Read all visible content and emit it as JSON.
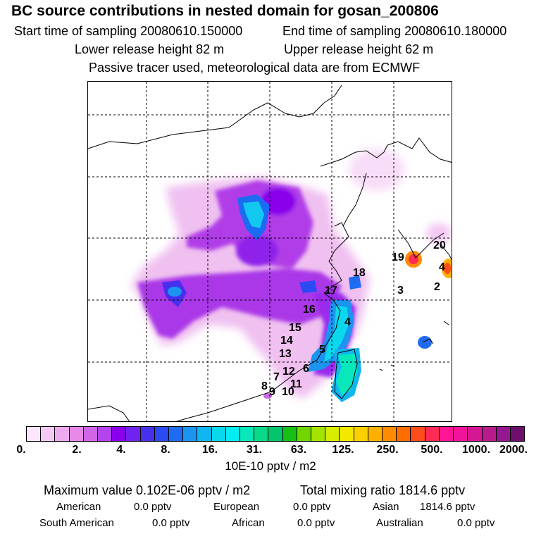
{
  "header": {
    "title": "BC  source contributions in nested domain for gosan_200806",
    "start_time": "Start time of sampling 20080610.150000",
    "end_time": "End time of sampling 20080610.180000",
    "lower_height": "Lower release height   82 m",
    "upper_height": "Upper release height   62 m",
    "tracer_note": "Passive tracer used, meteorological data are from ECMWF"
  },
  "map": {
    "region_labels": [
      "19",
      "20",
      "4",
      "2",
      "3",
      "18",
      "17",
      "16",
      "4",
      "15",
      "14",
      "13",
      "5",
      "6",
      "12",
      "7",
      "11",
      "8",
      "9",
      "10"
    ]
  },
  "colorbar": {
    "colors": [
      "#fbe6fb",
      "#f5c9f5",
      "#eeaaee",
      "#e788e8",
      "#cf66e6",
      "#b444ec",
      "#8a00ea",
      "#7022ee",
      "#4630ee",
      "#2a4af4",
      "#1f6cf2",
      "#1b95f0",
      "#0fb6f0",
      "#0ad8ec",
      "#06ecf3",
      "#08e8bb",
      "#0ad989",
      "#05c56a",
      "#18bf14",
      "#72d500",
      "#a4e200",
      "#d6ec00",
      "#f2e800",
      "#fbd000",
      "#ffb000",
      "#ff8c00",
      "#ff6c00",
      "#ff4c1c",
      "#ff2a55",
      "#ff1496",
      "#f0149a",
      "#d41894",
      "#b81c8a",
      "#961890",
      "#6e0f6e"
    ],
    "tick_labels": [
      "0.",
      "2.",
      "4.",
      "8.",
      "16.",
      "31.",
      "63.",
      "125.",
      "250.",
      "500.",
      "1000.",
      "2000."
    ],
    "unit": "10E-10 pptv / m2"
  },
  "stats": {
    "maximum": "Maximum value  0.102E-06 pptv / m2",
    "total": "Total mixing ratio      1814.6 pptv",
    "american_label": "American",
    "american_value": "0.0 pptv",
    "european_label": "European",
    "european_value": "0.0 pptv",
    "asian_label": "Asian",
    "asian_value": "1814.6 pptv",
    "south_american_label": "South American",
    "south_american_value": "0.0 pptv",
    "african_label": "African",
    "african_value": "0.0 pptv",
    "australian_label": "Australian",
    "australian_value": "0.0 pptv"
  }
}
